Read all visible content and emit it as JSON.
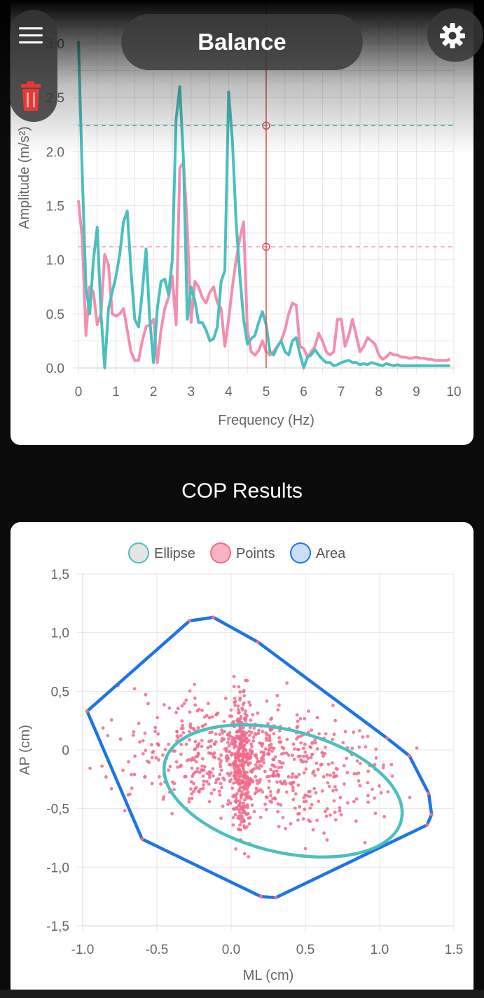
{
  "header": {
    "title": "Balance"
  },
  "icons": {
    "menu": "hamburger-menu-icon",
    "delete": "trash-icon",
    "settings": "gear-icon"
  },
  "colors": {
    "teal": "#4cbfbf",
    "pink": "#f28fb0",
    "blue": "#1e74e6",
    "red_marker": "#e05050"
  },
  "section": {
    "cop_title": "COP Results"
  },
  "chart_data": [
    {
      "type": "line",
      "xlabel": "Frequency (Hz)",
      "ylabel": "Amplitude (m/s²)",
      "xlim": [
        0,
        10
      ],
      "ylim": [
        0,
        3
      ],
      "xticks": [
        "0",
        "1",
        "2",
        "3",
        "4",
        "5",
        "6",
        "7",
        "8",
        "9",
        "10"
      ],
      "yticks": [
        "0.0",
        "0.5",
        "1.0",
        "1.5",
        "2.0",
        "2.5",
        "3.0"
      ],
      "grid": true,
      "marker": {
        "x": 5.0,
        "values": [
          2.24,
          1.12
        ]
      },
      "series": [
        {
          "color": "#4cbfbf",
          "x": [
            0.0,
            0.1,
            0.2,
            0.3,
            0.4,
            0.5,
            0.6,
            0.7,
            0.8,
            0.9,
            1.0,
            1.1,
            1.2,
            1.3,
            1.4,
            1.5,
            1.6,
            1.7,
            1.8,
            1.9,
            2.0,
            2.1,
            2.2,
            2.3,
            2.4,
            2.5,
            2.6,
            2.7,
            2.8,
            2.9,
            3.0,
            3.1,
            3.2,
            3.3,
            3.4,
            3.5,
            3.6,
            3.7,
            3.8,
            3.9,
            4.0,
            4.1,
            4.2,
            4.3,
            4.4,
            4.5,
            4.6,
            4.7,
            4.8,
            4.9,
            5.0,
            5.1,
            5.2,
            5.3,
            5.4,
            5.5,
            5.6,
            5.7,
            5.8,
            5.9,
            6.0,
            6.1,
            6.2,
            6.3,
            6.4,
            6.5,
            6.6,
            6.7,
            6.8,
            6.9,
            7.0,
            7.1,
            7.2,
            7.3,
            7.4,
            7.5,
            7.6,
            7.7,
            7.8,
            7.9,
            8.0,
            8.1,
            8.2,
            8.3,
            8.4,
            8.5,
            8.6,
            8.7,
            8.8,
            8.9,
            9.0,
            9.1,
            9.2,
            9.3,
            9.4,
            9.5,
            9.6,
            9.7,
            9.8,
            9.9
          ],
          "values": [
            3.02,
            1.8,
            0.75,
            0.5,
            1.0,
            1.3,
            0.5,
            0.0,
            0.55,
            0.7,
            0.85,
            1.05,
            1.35,
            1.45,
            0.9,
            0.45,
            0.38,
            0.7,
            1.1,
            0.45,
            0.05,
            0.55,
            0.8,
            0.82,
            0.68,
            1.0,
            2.3,
            2.6,
            1.9,
            0.45,
            0.75,
            0.62,
            0.42,
            0.42,
            0.35,
            0.25,
            0.27,
            0.38,
            0.8,
            0.9,
            2.55,
            2.1,
            1.35,
            0.85,
            0.45,
            0.22,
            0.27,
            0.3,
            0.42,
            0.52,
            0.4,
            0.15,
            0.12,
            0.2,
            0.25,
            0.15,
            0.12,
            0.25,
            0.28,
            0.13,
            0.0,
            0.1,
            0.12,
            0.17,
            0.12,
            0.08,
            0.05,
            0.05,
            0.02,
            0.03,
            0.05,
            0.06,
            0.07,
            0.05,
            0.05,
            0.03,
            0.04,
            0.03,
            0.05,
            0.04,
            0.03,
            0.02,
            0.04,
            0.03,
            0.02,
            0.03,
            0.02,
            0.02,
            0.02,
            0.02,
            0.02,
            0.02,
            0.02,
            0.02,
            0.02,
            0.02,
            0.02,
            0.02,
            0.02,
            0.02
          ]
        },
        {
          "color": "#f28fb0",
          "x": [
            0.0,
            0.1,
            0.2,
            0.3,
            0.4,
            0.5,
            0.6,
            0.7,
            0.8,
            0.9,
            1.0,
            1.1,
            1.2,
            1.3,
            1.4,
            1.5,
            1.6,
            1.7,
            1.8,
            1.9,
            2.0,
            2.1,
            2.2,
            2.3,
            2.4,
            2.5,
            2.6,
            2.7,
            2.8,
            2.9,
            3.0,
            3.1,
            3.2,
            3.3,
            3.4,
            3.5,
            3.6,
            3.7,
            3.8,
            3.9,
            4.0,
            4.1,
            4.2,
            4.3,
            4.4,
            4.5,
            4.6,
            4.7,
            4.8,
            4.9,
            5.0,
            5.1,
            5.2,
            5.3,
            5.4,
            5.5,
            5.6,
            5.7,
            5.8,
            5.9,
            6.0,
            6.1,
            6.2,
            6.3,
            6.4,
            6.5,
            6.6,
            6.7,
            6.8,
            6.9,
            7.0,
            7.1,
            7.2,
            7.3,
            7.4,
            7.5,
            7.6,
            7.7,
            7.8,
            7.9,
            8.0,
            8.1,
            8.2,
            8.3,
            8.4,
            8.5,
            8.6,
            8.7,
            8.8,
            8.9,
            9.0,
            9.1,
            9.2,
            9.3,
            9.4,
            9.5,
            9.6,
            9.7,
            9.8,
            9.9
          ],
          "values": [
            1.55,
            1.2,
            0.3,
            0.75,
            0.7,
            0.4,
            0.5,
            1.05,
            0.95,
            0.5,
            0.48,
            0.5,
            0.55,
            0.35,
            0.15,
            0.07,
            0.07,
            0.25,
            0.38,
            0.4,
            0.45,
            0.05,
            0.35,
            0.55,
            0.65,
            0.85,
            0.4,
            1.85,
            1.9,
            1.3,
            0.42,
            0.8,
            0.75,
            0.65,
            0.6,
            0.7,
            0.75,
            0.6,
            0.55,
            0.2,
            0.45,
            0.75,
            1.0,
            1.2,
            1.35,
            0.35,
            0.15,
            0.12,
            0.16,
            0.25,
            0.15,
            0.12,
            0.15,
            0.2,
            0.25,
            0.35,
            0.5,
            0.6,
            0.58,
            0.2,
            0.18,
            0.1,
            0.15,
            0.2,
            0.32,
            0.25,
            0.15,
            0.12,
            0.15,
            0.45,
            0.45,
            0.2,
            0.3,
            0.45,
            0.3,
            0.15,
            0.2,
            0.28,
            0.25,
            0.22,
            0.12,
            0.08,
            0.1,
            0.14,
            0.12,
            0.12,
            0.1,
            0.1,
            0.09,
            0.09,
            0.1,
            0.09,
            0.09,
            0.08,
            0.08,
            0.07,
            0.07,
            0.07,
            0.07,
            0.08
          ]
        }
      ]
    },
    {
      "type": "scatter",
      "title": "",
      "xlabel": "ML (cm)",
      "ylabel": "AP (cm)",
      "xlim": [
        -1.0,
        1.5
      ],
      "ylim": [
        -1.5,
        1.5
      ],
      "xticks": [
        "-1.0",
        "-0.5",
        "0.0",
        "0.5",
        "1.0",
        "1.5"
      ],
      "yticks": [
        "1,5",
        "1,0",
        "0,5",
        "0",
        "-0,5",
        "-1,0",
        "-1,5"
      ],
      "grid": true,
      "legend": {
        "position": "top",
        "items": [
          "Ellipse",
          "Points",
          "Area"
        ]
      },
      "ellipse": {
        "cx": 0.35,
        "cy": -0.35,
        "rx": 0.82,
        "ry": 0.52,
        "angle_deg": -14,
        "color": "#4cbfbf"
      },
      "area": {
        "color": "#1e74e6",
        "x": [
          -0.12,
          0.18,
          1.05,
          1.2,
          1.33,
          1.35,
          1.32,
          0.3,
          0.2,
          -0.6,
          -0.97,
          -0.28,
          -0.12
        ],
        "y": [
          1.13,
          0.92,
          0.1,
          -0.05,
          -0.37,
          -0.55,
          -0.64,
          -1.26,
          -1.25,
          -0.76,
          0.33,
          1.1,
          1.13
        ]
      },
      "points": {
        "color": "#f06b8b",
        "count": 950,
        "center_x": 0.1,
        "center_y": -0.2
      }
    }
  ]
}
